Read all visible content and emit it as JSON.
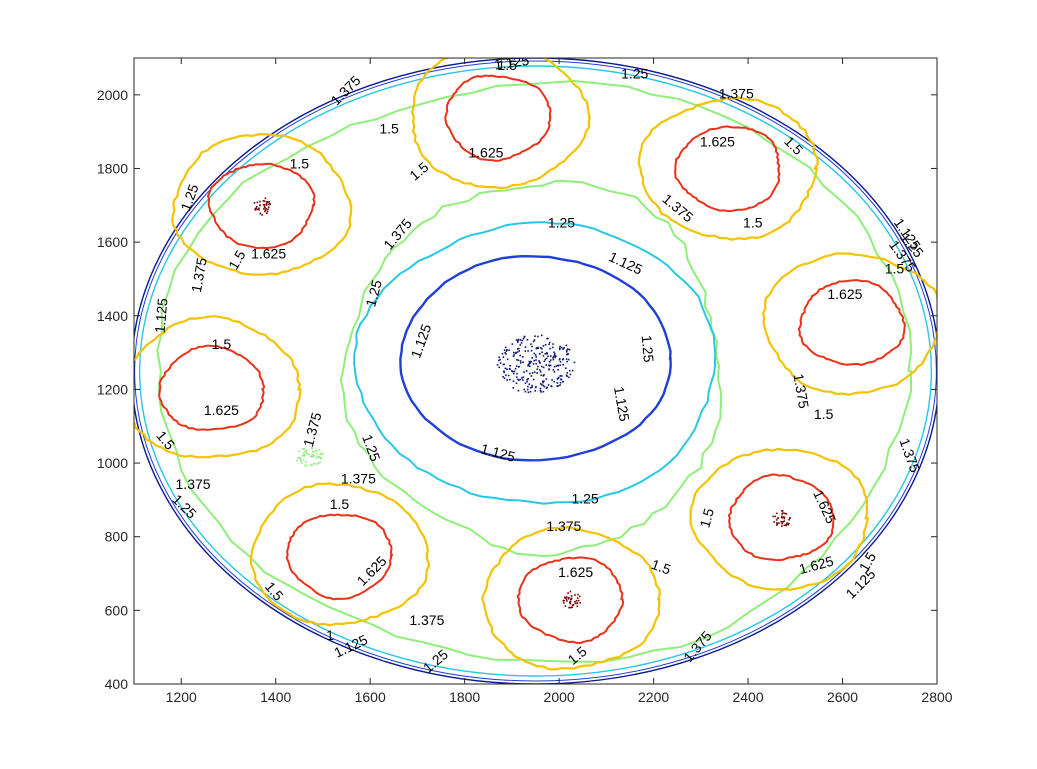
{
  "chart_data": {
    "type": "contour",
    "title": "",
    "xlabel": "",
    "ylabel": "",
    "xlim": [
      1100,
      2800
    ],
    "ylim": [
      400,
      2100
    ],
    "grid": false,
    "x_ticks": [
      "1200",
      "1400",
      "1600",
      "1800",
      "2000",
      "2200",
      "2400",
      "2600",
      "2800"
    ],
    "y_ticks": [
      "400",
      "600",
      "800",
      "1000",
      "1200",
      "1400",
      "1600",
      "1800",
      "2000"
    ],
    "boundary": {
      "cx": 1950,
      "cy": 1250,
      "rx": 855,
      "ry": 850,
      "color": "#0d1a8f"
    },
    "levels": [
      {
        "value": 1.125,
        "label": "1.125",
        "color": "#1f3fd6"
      },
      {
        "value": 1.25,
        "label": "1.25",
        "color": "#29c7e6"
      },
      {
        "value": 1.375,
        "label": "1.375",
        "color": "#8fef7a"
      },
      {
        "value": 1.5,
        "label": "1.5",
        "color": "#f5c200"
      },
      {
        "value": 1.625,
        "label": "1.625",
        "color": "#e8321a"
      }
    ],
    "center_cluster": {
      "x": 1950,
      "y": 1270,
      "color": "#0a1478"
    },
    "cells": [
      {
        "x": 1370,
        "y": 1700,
        "peak": true
      },
      {
        "x": 1265,
        "y": 1200,
        "peak": false
      },
      {
        "x": 1535,
        "y": 750,
        "peak": false
      },
      {
        "x": 2025,
        "y": 630,
        "peak": true
      },
      {
        "x": 2470,
        "y": 850,
        "peak": true
      },
      {
        "x": 2620,
        "y": 1380,
        "peak": false
      },
      {
        "x": 2360,
        "y": 1800,
        "peak": false
      },
      {
        "x": 1870,
        "y": 1940,
        "peak": false
      }
    ],
    "contour_labels": [
      {
        "text": "1.125",
        "x": 1900,
        "y": 2085,
        "angle": -8
      },
      {
        "text": "1.5",
        "x": 1890,
        "y": 2078,
        "angle": 0
      },
      {
        "text": "1.25",
        "x": 2160,
        "y": 2055,
        "angle": 0
      },
      {
        "text": "1.375",
        "x": 1550,
        "y": 2010,
        "angle": -45
      },
      {
        "text": "1.375",
        "x": 2375,
        "y": 2000,
        "angle": 0
      },
      {
        "text": "1.625",
        "x": 1845,
        "y": 1840,
        "angle": 0
      },
      {
        "text": "1.5",
        "x": 1705,
        "y": 1790,
        "angle": -40
      },
      {
        "text": "1.5",
        "x": 1640,
        "y": 1905,
        "angle": 0
      },
      {
        "text": "1.625",
        "x": 2335,
        "y": 1870,
        "angle": 0
      },
      {
        "text": "1.5",
        "x": 2495,
        "y": 1860,
        "angle": 45
      },
      {
        "text": "1.5",
        "x": 1450,
        "y": 1810,
        "angle": 0
      },
      {
        "text": "1.25",
        "x": 1220,
        "y": 1720,
        "angle": -70
      },
      {
        "text": "1.625",
        "x": 1385,
        "y": 1565,
        "angle": 0
      },
      {
        "text": "1.5",
        "x": 1320,
        "y": 1550,
        "angle": -60
      },
      {
        "text": "1.375",
        "x": 1660,
        "y": 1620,
        "angle": -50
      },
      {
        "text": "1.375",
        "x": 2250,
        "y": 1690,
        "angle": 40
      },
      {
        "text": "1.5",
        "x": 2410,
        "y": 1650,
        "angle": 0
      },
      {
        "text": "1.25",
        "x": 2005,
        "y": 1650,
        "angle": 0
      },
      {
        "text": "1.125",
        "x": 2140,
        "y": 1540,
        "angle": 25
      },
      {
        "text": "1.375",
        "x": 1240,
        "y": 1510,
        "angle": -80
      },
      {
        "text": "1.25",
        "x": 1610,
        "y": 1460,
        "angle": -75
      },
      {
        "text": "1.125",
        "x": 1710,
        "y": 1330,
        "angle": -70
      },
      {
        "text": "1.625",
        "x": 2605,
        "y": 1455,
        "angle": 0
      },
      {
        "text": "1.375",
        "x": 2725,
        "y": 1560,
        "angle": 55
      },
      {
        "text": "1.5",
        "x": 2710,
        "y": 1525,
        "angle": 0
      },
      {
        "text": "1.25",
        "x": 2745,
        "y": 1590,
        "angle": 50
      },
      {
        "text": "1.25",
        "x": 2185,
        "y": 1310,
        "angle": 85
      },
      {
        "text": "1.375",
        "x": 2510,
        "y": 1195,
        "angle": 80
      },
      {
        "text": "1.5",
        "x": 2560,
        "y": 1130,
        "angle": 0
      },
      {
        "text": "1.125",
        "x": 2130,
        "y": 1160,
        "angle": 80
      },
      {
        "text": "1.5",
        "x": 1285,
        "y": 1320,
        "angle": 0
      },
      {
        "text": "1.625",
        "x": 1285,
        "y": 1140,
        "angle": 0
      },
      {
        "text": "1.5",
        "x": 1165,
        "y": 1060,
        "angle": 50
      },
      {
        "text": "1.375",
        "x": 1480,
        "y": 1090,
        "angle": -75
      },
      {
        "text": "1.25",
        "x": 1600,
        "y": 1040,
        "angle": 70
      },
      {
        "text": "1.125",
        "x": 1870,
        "y": 1025,
        "angle": 15
      },
      {
        "text": "1.375",
        "x": 1575,
        "y": 955,
        "angle": 0
      },
      {
        "text": "1.375",
        "x": 1225,
        "y": 940,
        "angle": 0
      },
      {
        "text": "1.25",
        "x": 1205,
        "y": 880,
        "angle": 45
      },
      {
        "text": "1.25",
        "x": 2055,
        "y": 900,
        "angle": 0
      },
      {
        "text": "1.375",
        "x": 2010,
        "y": 825,
        "angle": 0
      },
      {
        "text": "1.5",
        "x": 1535,
        "y": 885,
        "angle": 0
      },
      {
        "text": "1.625",
        "x": 1605,
        "y": 705,
        "angle": -45
      },
      {
        "text": "1.5",
        "x": 1395,
        "y": 650,
        "angle": 50
      },
      {
        "text": "1.625",
        "x": 2035,
        "y": 700,
        "angle": 0
      },
      {
        "text": "1.5",
        "x": 2215,
        "y": 715,
        "angle": 20
      },
      {
        "text": "1.5",
        "x": 2315,
        "y": 850,
        "angle": -75
      },
      {
        "text": "1.625",
        "x": 2560,
        "y": 880,
        "angle": 65
      },
      {
        "text": "1.625",
        "x": 2545,
        "y": 720,
        "angle": -15
      },
      {
        "text": "1.375",
        "x": 2740,
        "y": 1020,
        "angle": 70
      },
      {
        "text": "1.5",
        "x": 2655,
        "y": 730,
        "angle": -60
      },
      {
        "text": "1.125",
        "x": 2640,
        "y": 670,
        "angle": -45
      },
      {
        "text": "1.375",
        "x": 1720,
        "y": 570,
        "angle": 0
      },
      {
        "text": "1.375",
        "x": 2295,
        "y": 500,
        "angle": -50
      },
      {
        "text": "1.5",
        "x": 2040,
        "y": 475,
        "angle": -40
      },
      {
        "text": "1.25",
        "x": 1740,
        "y": 460,
        "angle": -40
      },
      {
        "text": "1",
        "x": 1515,
        "y": 530,
        "angle": 0
      },
      {
        "text": "1.125",
        "x": 1560,
        "y": 500,
        "angle": -25
      },
      {
        "text": "1.125",
        "x": 1160,
        "y": 1400,
        "angle": -85
      },
      {
        "text": "1.125",
        "x": 2735,
        "y": 1620,
        "angle": 55
      }
    ]
  }
}
